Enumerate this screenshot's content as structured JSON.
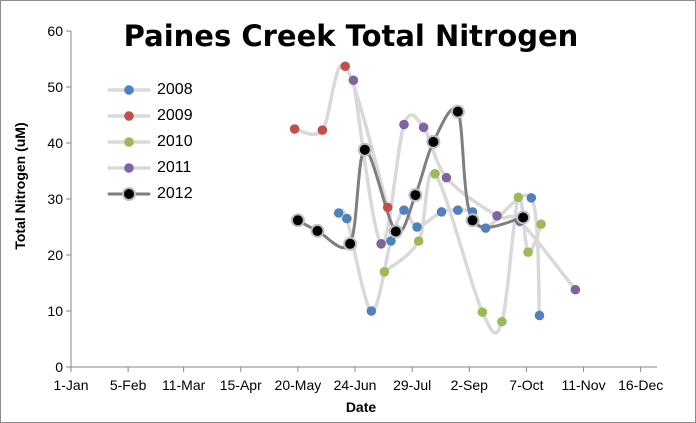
{
  "chart_data": {
    "type": "scatter",
    "title": "Paines Creek Total Nitrogen",
    "xlabel": "Date",
    "ylabel": "Total Nitrogen (uM)",
    "x_ticks": [
      {
        "day": 1,
        "label": "1-Jan"
      },
      {
        "day": 36,
        "label": "5-Feb"
      },
      {
        "day": 70,
        "label": "11-Mar"
      },
      {
        "day": 105,
        "label": "15-Apr"
      },
      {
        "day": 140,
        "label": "20-May"
      },
      {
        "day": 175,
        "label": "24-Jun"
      },
      {
        "day": 210,
        "label": "29-Jul"
      },
      {
        "day": 245,
        "label": "2-Sep"
      },
      {
        "day": 280,
        "label": "7-Oct"
      },
      {
        "day": 315,
        "label": "11-Nov"
      },
      {
        "day": 350,
        "label": "16-Dec"
      }
    ],
    "xlim": [
      1,
      360
    ],
    "ylim": [
      0,
      60
    ],
    "y_ticks": [
      0,
      10,
      20,
      30,
      40,
      50,
      60
    ],
    "grid": false,
    "legend_position": "upper-left",
    "series": [
      {
        "name": "2008",
        "color": "#4f81bd",
        "points": [
          {
            "x": 165,
            "y": 27.5
          },
          {
            "x": 170,
            "y": 26.5
          },
          {
            "x": 185,
            "y": 10.0
          },
          {
            "x": 197,
            "y": 22.5
          },
          {
            "x": 205,
            "y": 28.0
          },
          {
            "x": 213,
            "y": 25.0
          },
          {
            "x": 228,
            "y": 27.7
          },
          {
            "x": 238,
            "y": 28.0
          },
          {
            "x": 247,
            "y": 27.7
          },
          {
            "x": 255,
            "y": 24.8
          },
          {
            "x": 283,
            "y": 30.2
          },
          {
            "x": 288,
            "y": 9.2
          }
        ]
      },
      {
        "name": "2009",
        "color": "#c0504d",
        "points": [
          {
            "x": 138,
            "y": 42.5
          },
          {
            "x": 155,
            "y": 42.3
          },
          {
            "x": 169,
            "y": 53.7
          },
          {
            "x": 195,
            "y": 28.5
          }
        ]
      },
      {
        "name": "2010",
        "color": "#9bbb59",
        "points": [
          {
            "x": 193,
            "y": 17.0
          },
          {
            "x": 214,
            "y": 22.5
          },
          {
            "x": 224,
            "y": 34.5
          },
          {
            "x": 253,
            "y": 9.8
          },
          {
            "x": 265,
            "y": 8.1
          },
          {
            "x": 275,
            "y": 30.3
          },
          {
            "x": 281,
            "y": 20.5
          },
          {
            "x": 289,
            "y": 25.5
          }
        ]
      },
      {
        "name": "2011",
        "color": "#8064a2",
        "points": [
          {
            "x": 174,
            "y": 51.2
          },
          {
            "x": 191,
            "y": 22.0
          },
          {
            "x": 205,
            "y": 43.3
          },
          {
            "x": 217,
            "y": 42.8
          },
          {
            "x": 231,
            "y": 33.8
          },
          {
            "x": 262,
            "y": 27.0
          },
          {
            "x": 276,
            "y": 26.0
          },
          {
            "x": 310,
            "y": 13.8
          }
        ]
      },
      {
        "name": "2012",
        "color": "#000000",
        "points": [
          {
            "x": 140,
            "y": 26.2
          },
          {
            "x": 152,
            "y": 24.3
          },
          {
            "x": 172,
            "y": 22.0
          },
          {
            "x": 181,
            "y": 38.8
          },
          {
            "x": 200,
            "y": 24.2
          },
          {
            "x": 212,
            "y": 30.7
          },
          {
            "x": 223,
            "y": 40.2
          },
          {
            "x": 238,
            "y": 45.6
          },
          {
            "x": 247,
            "y": 26.2
          },
          {
            "x": 278,
            "y": 26.7
          }
        ]
      }
    ]
  }
}
